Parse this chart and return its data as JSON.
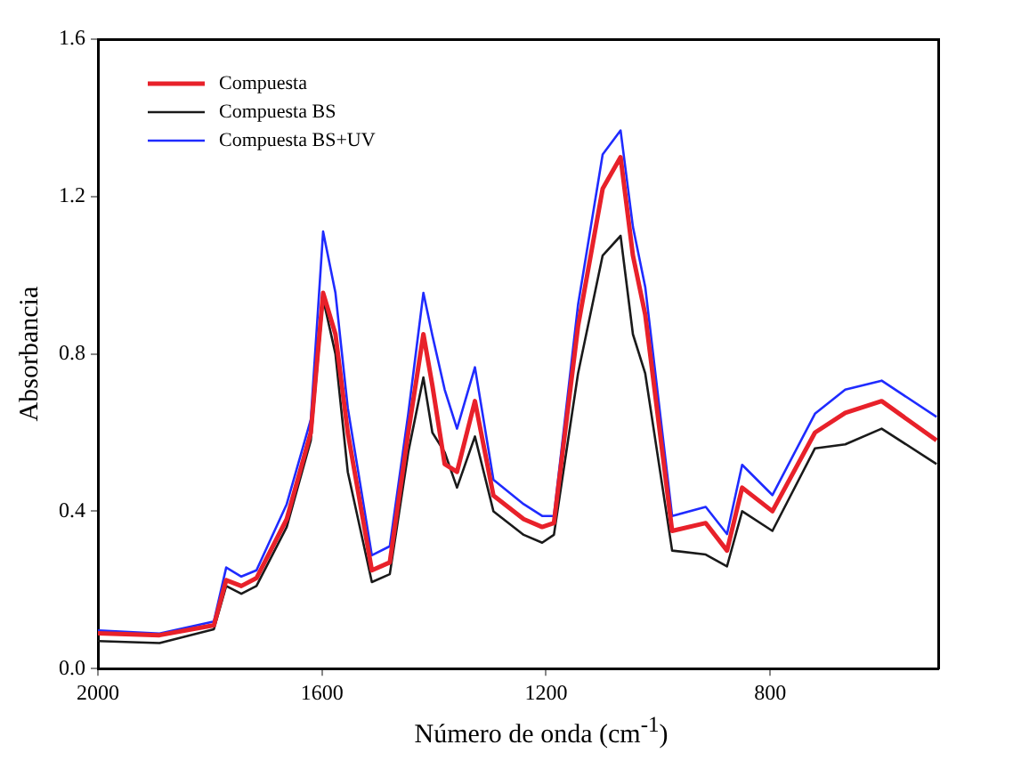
{
  "chart_data": {
    "type": "line",
    "xlabel": "Número de onda (cm$^{-1}$)",
    "ylabel": "Absorbancia",
    "x": [
      2000,
      1890,
      1793,
      1771,
      1744,
      1717,
      1663,
      1620,
      1598,
      1576,
      1554,
      1511,
      1479,
      1446,
      1419,
      1403,
      1381,
      1359,
      1327,
      1294,
      1240,
      1207,
      1186,
      1143,
      1099,
      1067,
      1045,
      1023,
      975,
      915,
      877,
      850,
      796,
      720,
      666,
      601,
      503
    ],
    "series": [
      {
        "name": "Compuesta",
        "color": "#e8212a",
        "values": [
          0.09,
          0.085,
          0.11,
          0.225,
          0.21,
          0.23,
          0.38,
          0.6,
          0.955,
          0.85,
          0.6,
          0.25,
          0.27,
          0.6,
          0.85,
          0.72,
          0.52,
          0.5,
          0.68,
          0.44,
          0.38,
          0.36,
          0.37,
          0.87,
          1.22,
          1.3,
          1.05,
          0.9,
          0.35,
          0.37,
          0.3,
          0.46,
          0.4,
          0.6,
          0.65,
          0.68,
          0.58
        ]
      },
      {
        "name": "Compuesta BS",
        "color": "#1a1a1a",
        "values": [
          0.07,
          0.065,
          0.1,
          0.21,
          0.19,
          0.21,
          0.36,
          0.58,
          0.94,
          0.8,
          0.5,
          0.22,
          0.24,
          0.55,
          0.74,
          0.6,
          0.55,
          0.46,
          0.59,
          0.4,
          0.34,
          0.32,
          0.34,
          0.75,
          1.05,
          1.1,
          0.85,
          0.75,
          0.3,
          0.29,
          0.26,
          0.4,
          0.35,
          0.56,
          0.57,
          0.61,
          0.52
        ]
      },
      {
        "name": "Compuesta BS+UV",
        "color": "#1f2bff",
        "values": [
          0.097,
          0.089,
          0.12,
          0.257,
          0.234,
          0.25,
          0.418,
          0.633,
          1.111,
          0.955,
          0.663,
          0.288,
          0.311,
          0.648,
          0.955,
          0.847,
          0.709,
          0.61,
          0.766,
          0.48,
          0.418,
          0.388,
          0.388,
          0.924,
          1.307,
          1.368,
          1.123,
          0.97,
          0.388,
          0.411,
          0.342,
          0.518,
          0.441,
          0.648,
          0.709,
          0.732,
          0.64
        ]
      }
    ],
    "xlim": [
      2000,
      500
    ],
    "xticks": [
      2000,
      1600,
      1200,
      800
    ],
    "ylim": [
      0,
      1.6
    ],
    "yticks": [
      {
        "value": 0,
        "label": "0.0"
      },
      {
        "value": 0.4,
        "label": "0.4"
      },
      {
        "value": 0.8,
        "label": "0.8"
      },
      {
        "value": 1.2,
        "label": "1.2"
      },
      {
        "value": 1.6,
        "label": "1.6"
      }
    ],
    "grid": false,
    "legend": "top left",
    "marker": "none",
    "line_style": "solid"
  }
}
